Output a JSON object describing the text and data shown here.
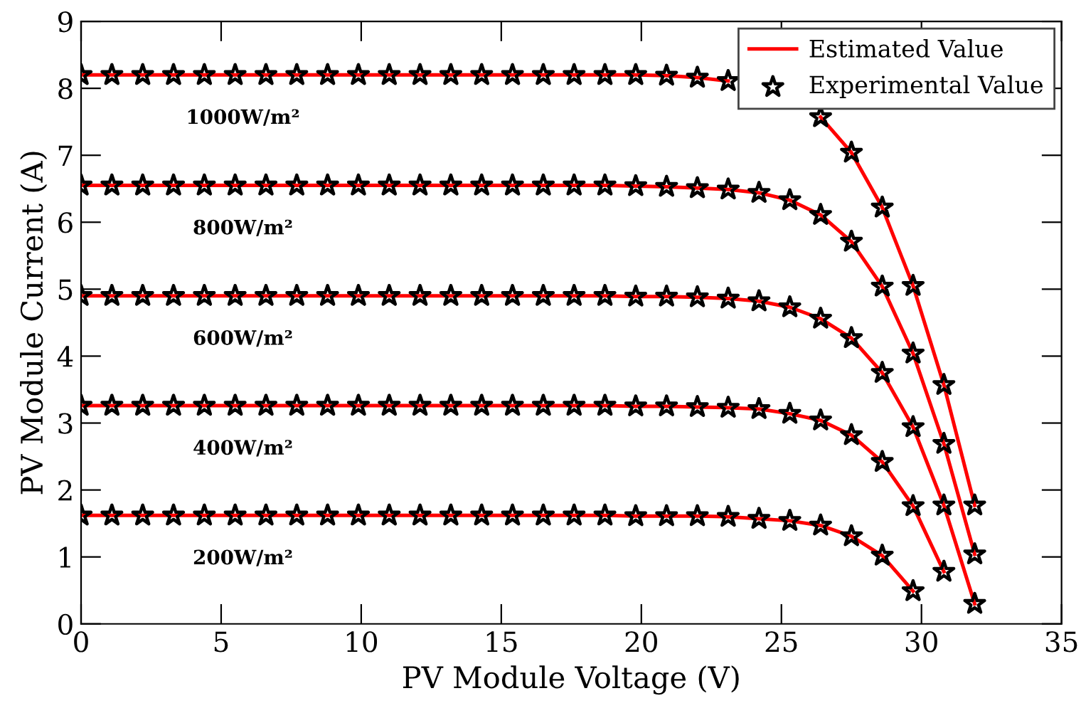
{
  "chart_data": {
    "type": "line",
    "xlabel": "PV Module Voltage (V)",
    "ylabel": "PV Module Current (A)",
    "x": [
      0,
      1.1,
      2.2,
      3.3,
      4.4,
      5.5,
      6.6,
      7.7,
      8.8,
      9.9,
      11,
      12.1,
      13.2,
      14.3,
      15.4,
      16.5,
      17.6,
      18.7,
      19.8,
      20.9,
      22,
      23.1,
      24.2,
      25.3,
      26.4,
      27.5,
      28.6,
      29.7,
      30.8,
      31.9
    ],
    "series": [
      {
        "name": "Estimated Value",
        "marker": "none",
        "color": "#ff0000",
        "values": [
          8.2,
          8.2,
          8.2,
          8.2,
          8.2,
          8.2,
          8.2,
          8.2,
          8.2,
          8.2,
          8.2,
          8.2,
          8.2,
          8.2,
          8.2,
          8.2,
          8.2,
          8.2,
          8.2,
          8.19,
          8.16,
          8.11,
          null,
          null,
          7.57,
          7.04,
          6.22,
          5.05,
          3.57,
          1.77
        ]
      },
      {
        "marker": "none",
        "color": "#ff0000",
        "values": [
          6.55,
          6.55,
          6.55,
          6.55,
          6.55,
          6.55,
          6.55,
          6.55,
          6.55,
          6.55,
          6.55,
          6.55,
          6.55,
          6.55,
          6.55,
          6.55,
          6.55,
          6.55,
          6.54,
          6.53,
          6.51,
          6.49,
          6.44,
          6.33,
          6.11,
          5.71,
          5.04,
          4.04,
          2.69,
          1.04
        ]
      },
      {
        "marker": "none",
        "color": "#ff0000",
        "values": [
          4.9,
          4.9,
          4.9,
          4.9,
          4.9,
          4.9,
          4.9,
          4.9,
          4.9,
          4.9,
          4.9,
          4.9,
          4.9,
          4.9,
          4.9,
          4.9,
          4.9,
          4.9,
          4.89,
          4.89,
          4.88,
          4.86,
          4.82,
          4.73,
          4.56,
          4.27,
          3.75,
          2.94,
          1.77,
          0.3
        ]
      },
      {
        "marker": "none",
        "color": "#ff0000",
        "values": [
          3.26,
          3.26,
          3.26,
          3.26,
          3.26,
          3.26,
          3.26,
          3.26,
          3.26,
          3.26,
          3.26,
          3.26,
          3.26,
          3.26,
          3.26,
          3.26,
          3.26,
          3.26,
          3.25,
          3.25,
          3.24,
          3.23,
          3.21,
          3.14,
          3.04,
          2.82,
          2.42,
          1.76,
          0.78,
          null
        ]
      },
      {
        "marker": "none",
        "color": "#ff0000",
        "values": [
          1.62,
          1.62,
          1.62,
          1.62,
          1.62,
          1.62,
          1.62,
          1.62,
          1.62,
          1.62,
          1.62,
          1.62,
          1.62,
          1.62,
          1.62,
          1.62,
          1.62,
          1.62,
          1.61,
          1.61,
          1.61,
          1.6,
          1.57,
          1.54,
          1.47,
          1.31,
          1.02,
          0.49,
          null,
          null
        ]
      },
      {
        "name": "Experimental Value",
        "type": "scatter",
        "color": "#000000",
        "values": [
          8.2,
          8.2,
          8.2,
          8.2,
          8.2,
          8.2,
          8.2,
          8.2,
          8.2,
          8.2,
          8.2,
          8.2,
          8.2,
          8.2,
          8.2,
          8.2,
          8.2,
          8.2,
          8.2,
          8.19,
          8.16,
          8.11,
          null,
          null,
          7.57,
          7.04,
          6.22,
          5.05,
          3.57,
          1.77
        ]
      },
      {
        "type": "scatter",
        "color": "#000000",
        "values": [
          6.55,
          6.55,
          6.55,
          6.55,
          6.55,
          6.55,
          6.55,
          6.55,
          6.55,
          6.55,
          6.55,
          6.55,
          6.55,
          6.55,
          6.55,
          6.55,
          6.55,
          6.55,
          6.54,
          6.53,
          6.51,
          6.49,
          6.44,
          6.33,
          6.11,
          5.71,
          5.04,
          4.04,
          2.69,
          1.04
        ]
      },
      {
        "type": "scatter",
        "color": "#000000",
        "values": [
          4.9,
          4.9,
          4.9,
          4.9,
          4.9,
          4.9,
          4.9,
          4.9,
          4.9,
          4.9,
          4.9,
          4.9,
          4.9,
          4.9,
          4.9,
          4.9,
          4.9,
          4.9,
          4.89,
          4.89,
          4.88,
          4.86,
          4.82,
          4.73,
          4.56,
          4.27,
          3.75,
          2.94,
          1.77,
          0.3
        ]
      },
      {
        "type": "scatter",
        "color": "#000000",
        "values": [
          3.26,
          3.26,
          3.26,
          3.26,
          3.26,
          3.26,
          3.26,
          3.26,
          3.26,
          3.26,
          3.26,
          3.26,
          3.26,
          3.26,
          3.26,
          3.26,
          3.26,
          3.26,
          3.25,
          3.25,
          3.24,
          3.23,
          3.21,
          3.14,
          3.04,
          2.82,
          2.42,
          1.76,
          0.78,
          null
        ]
      },
      {
        "type": "scatter",
        "color": "#000000",
        "values": [
          1.62,
          1.62,
          1.62,
          1.62,
          1.62,
          1.62,
          1.62,
          1.62,
          1.62,
          1.62,
          1.62,
          1.62,
          1.62,
          1.62,
          1.62,
          1.62,
          1.62,
          1.62,
          1.61,
          1.61,
          1.61,
          1.6,
          1.57,
          1.54,
          1.47,
          1.31,
          1.02,
          0.49,
          null,
          null
        ]
      }
    ],
    "marker": "star",
    "line_style": "solid",
    "legend": "top right",
    "grid": false,
    "xlim": [
      0,
      35
    ],
    "xticks": [
      0,
      5,
      10,
      15,
      20,
      25,
      30,
      35
    ],
    "ylim": [
      0,
      9
    ],
    "yticks": [
      0,
      1,
      2,
      3,
      4,
      5,
      6,
      7,
      8,
      9
    ],
    "annotations": [
      "1000W/m²",
      "800W/m²",
      "600W/m²",
      "400W/m²",
      "200W/m²"
    ]
  }
}
